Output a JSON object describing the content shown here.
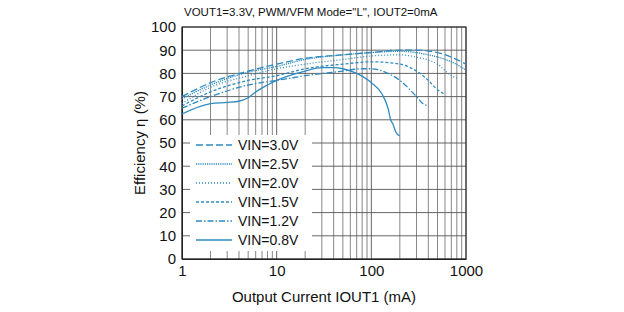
{
  "chart_data": {
    "type": "line",
    "title": "VOUT1=3.3V, PWM/VFM Mode=\"L\", IOUT2=0mA",
    "x_label": "Output Current IOUT1 (mA)",
    "y_label": "Efficiency η (%)",
    "log": "x",
    "grid": true,
    "legend": "lower-left",
    "xlim": [
      1,
      1000
    ],
    "ylim": [
      0,
      100
    ],
    "xticks": [
      1,
      10,
      100,
      1000
    ],
    "yticks": [
      0,
      10,
      20,
      30,
      40,
      50,
      60,
      70,
      80,
      90,
      100
    ],
    "x_minor_gridlines": [
      2,
      3,
      4,
      5,
      6,
      7,
      8,
      9,
      20,
      30,
      40,
      50,
      60,
      70,
      80,
      90,
      200,
      300,
      400,
      500,
      600,
      700,
      800,
      900
    ],
    "series": [
      {
        "name": "VIN=3.0V",
        "color": "#2e8bc0",
        "line_style": "dashed",
        "x": [
          1,
          2,
          5,
          10,
          20,
          50,
          100,
          200,
          300,
          500,
          700,
          1000
        ],
        "values": [
          70,
          76,
          81,
          84,
          86.5,
          88,
          89,
          90,
          90,
          89,
          87,
          84
        ]
      },
      {
        "name": "VIN=2.5V",
        "color": "#2e8bc0",
        "line_style": "densely-dotted",
        "x": [
          1,
          2,
          5,
          10,
          20,
          50,
          100,
          200,
          400,
          700,
          1000
        ],
        "values": [
          69,
          75,
          80.5,
          83,
          86,
          88,
          89,
          89.5,
          88,
          85,
          81.5
        ]
      },
      {
        "name": "VIN=2.0V",
        "color": "#2e8bc0",
        "line_style": "dotted",
        "x": [
          1,
          2,
          5,
          10,
          20,
          50,
          100,
          200,
          300,
          500,
          700,
          800
        ],
        "values": [
          67,
          74,
          79,
          82,
          84,
          86,
          87.5,
          88,
          87,
          84,
          79,
          78
        ]
      },
      {
        "name": "VIN=1.5V",
        "color": "#2e8bc0",
        "line_style": "short-dashed",
        "x": [
          1,
          2,
          5,
          10,
          20,
          50,
          100,
          200,
          300,
          400,
          500,
          600
        ],
        "values": [
          66,
          72,
          77,
          79,
          82,
          84,
          85,
          84,
          81,
          77,
          73,
          71
        ]
      },
      {
        "name": "VIN=1.2V",
        "color": "#2e8bc0",
        "line_style": "dash-dot",
        "x": [
          1,
          2,
          5,
          10,
          20,
          50,
          80,
          100,
          150,
          200,
          300,
          350,
          400
        ],
        "values": [
          65,
          70,
          75,
          77,
          79,
          81,
          82,
          82,
          80,
          77,
          70,
          67,
          66
        ]
      },
      {
        "name": "VIN=0.8V",
        "color": "#2e8bc0",
        "line_style": "solid",
        "x": [
          1,
          2,
          3,
          4,
          5,
          6,
          8,
          10,
          20,
          30,
          40,
          50,
          70,
          100,
          130,
          150,
          160,
          170,
          180,
          200
        ],
        "values": [
          62.5,
          67,
          67.5,
          68,
          69.5,
          72,
          75,
          77,
          81,
          82.5,
          82.5,
          82,
          80,
          76,
          71,
          65,
          60,
          58,
          55,
          53
        ]
      }
    ]
  }
}
